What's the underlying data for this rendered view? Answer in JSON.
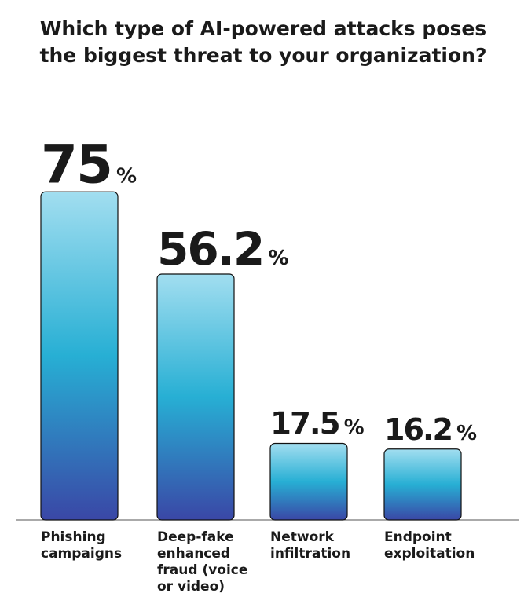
{
  "chart_data": {
    "type": "bar",
    "title": "Which type of AI-powered attacks poses the biggest threat to your organization?",
    "categories": [
      "Phishing campaigns",
      "Deep-fake enhanced fraud (voice or video)",
      "Network infiltration",
      "Endpoint exploitation"
    ],
    "values": [
      75,
      56.2,
      17.5,
      16.2
    ],
    "value_labels": [
      "75%",
      "56.2%",
      "17.5%",
      "16.2%"
    ],
    "colors": [
      "#a2def0",
      "#27afd4",
      "#3a47a6"
    ]
  }
}
